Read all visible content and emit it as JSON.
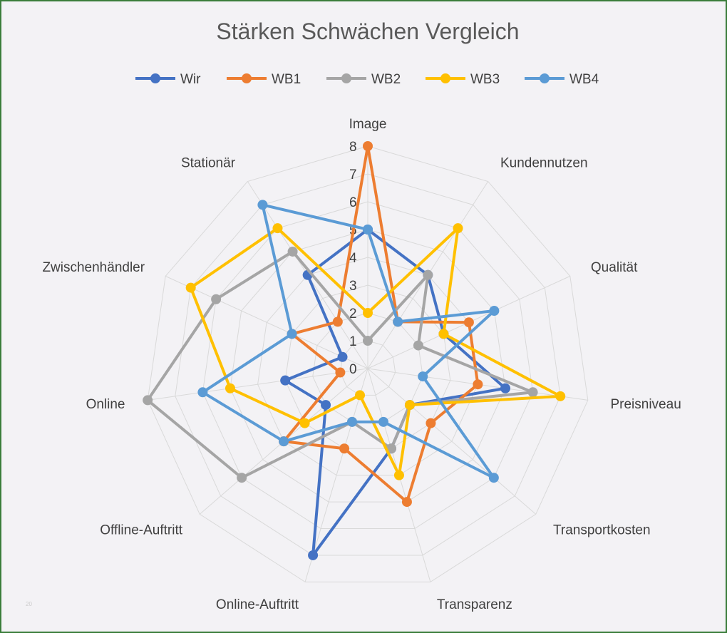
{
  "chart_data": {
    "type": "radar",
    "title": "Stärken Schwächen Vergleich",
    "categories": [
      "Image",
      "Kundennutzen",
      "Qualität",
      "Preisniveau",
      "Transportkosten",
      "Transparenz",
      "Online-Auftritt",
      "Offline-Auftritt",
      "Online",
      "Zwischenhändler",
      "Stationär"
    ],
    "rlim": [
      0,
      8
    ],
    "ticks": [
      "0",
      "1",
      "2",
      "3",
      "4",
      "5",
      "6",
      "7",
      "8"
    ],
    "grid": true,
    "legend_position": "top",
    "series": [
      {
        "name": "Wir",
        "color": "#4472C4",
        "values": [
          5,
          4,
          3,
          5,
          2,
          3,
          7,
          2,
          3,
          1,
          4
        ]
      },
      {
        "name": "WB1",
        "color": "#ED7D31",
        "values": [
          8,
          2,
          4,
          4,
          3,
          5,
          3,
          4,
          1,
          3,
          2
        ]
      },
      {
        "name": "WB2",
        "color": "#A5A5A5",
        "values": [
          1,
          4,
          2,
          6,
          2,
          3,
          2,
          6,
          8,
          6,
          5
        ]
      },
      {
        "name": "WB3",
        "color": "#FFC000",
        "values": [
          2,
          6,
          3,
          7,
          2,
          4,
          1,
          3,
          5,
          7,
          6
        ]
      },
      {
        "name": "WB4",
        "color": "#5B9BD5",
        "values": [
          5,
          2,
          5,
          2,
          6,
          2,
          2,
          4,
          6,
          3,
          7
        ]
      }
    ]
  },
  "watermark": "20"
}
